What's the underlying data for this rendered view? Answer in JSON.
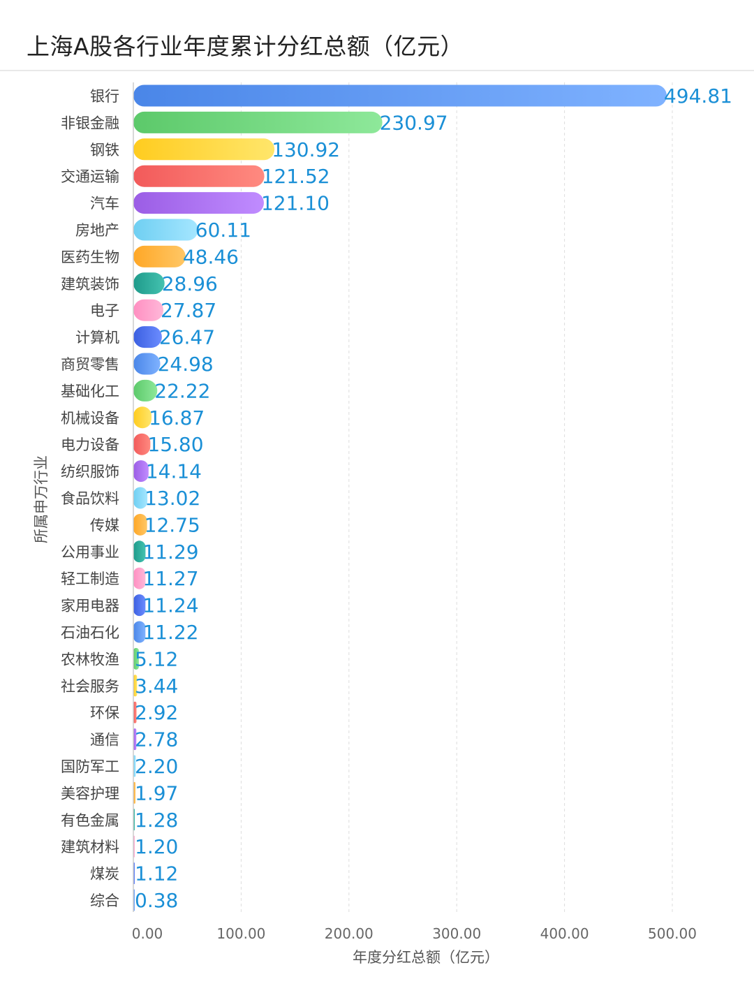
{
  "chart_data": {
    "type": "bar",
    "orientation": "horizontal",
    "title": "上海A股各行业年度累计分红总额（亿元）",
    "xlabel": "年度分红总额（亿元）",
    "ylabel": "所属申万行业",
    "xlim": [
      0,
      500
    ],
    "x_ticks": [
      "0.00",
      "100.00",
      "200.00",
      "300.00",
      "400.00",
      "500.00"
    ],
    "grid": true,
    "legend": "none",
    "categories": [
      "银行",
      "非银金融",
      "钢铁",
      "交通运输",
      "汽车",
      "房地产",
      "医药生物",
      "建筑装饰",
      "电子",
      "计算机",
      "商贸零售",
      "基础化工",
      "机械设备",
      "电力设备",
      "纺织服饰",
      "食品饮料",
      "传媒",
      "公用事业",
      "轻工制造",
      "家用电器",
      "石油石化",
      "农林牧渔",
      "社会服务",
      "环保",
      "通信",
      "国防军工",
      "美容护理",
      "有色金属",
      "建筑材料",
      "煤炭",
      "综合"
    ],
    "values": [
      494.81,
      230.97,
      130.92,
      121.52,
      121.1,
      60.11,
      48.46,
      28.96,
      27.87,
      26.47,
      24.98,
      22.22,
      16.87,
      15.8,
      14.14,
      13.02,
      12.75,
      11.29,
      11.27,
      11.24,
      11.22,
      5.12,
      3.44,
      2.92,
      2.78,
      2.2,
      1.97,
      1.28,
      1.2,
      1.12,
      0.38
    ],
    "value_labels": [
      "494.81",
      "230.97",
      "130.92",
      "121.52",
      "121.10",
      "60.11",
      "48.46",
      "28.96",
      "27.87",
      "26.47",
      "24.98",
      "22.22",
      "16.87",
      "15.80",
      "14.14",
      "13.02",
      "12.75",
      "11.29",
      "11.27",
      "11.24",
      "11.22",
      "5.12",
      "3.44",
      "2.92",
      "2.78",
      "2.20",
      "1.97",
      "1.28",
      "1.20",
      "1.12",
      "0.38"
    ]
  },
  "colors": {
    "palette": [
      [
        "#4a86e8",
        "#7fb2ff"
      ],
      [
        "#5cc96a",
        "#8ee89a"
      ],
      [
        "#ffcc1f",
        "#ffe66b"
      ],
      [
        "#f25a5a",
        "#ff8a80"
      ],
      [
        "#9b5de5",
        "#c08cff"
      ],
      [
        "#6fcff2",
        "#a5e6ff"
      ],
      [
        "#ffa726",
        "#ffc766"
      ],
      [
        "#1e9a8a",
        "#44c2b0"
      ],
      [
        "#ff8fc1",
        "#ffb8d9"
      ],
      [
        "#3b5fe0",
        "#6b8cff"
      ]
    ],
    "value_label": "#1a8fd6"
  }
}
